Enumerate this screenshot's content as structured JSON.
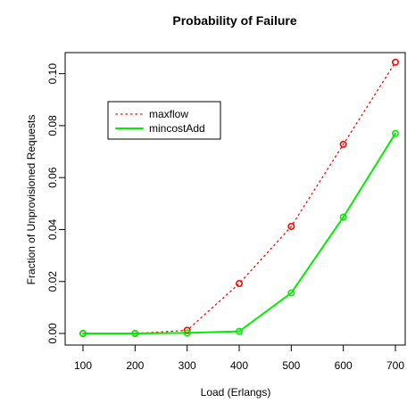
{
  "chart_data": {
    "type": "line",
    "title": "Probability of Failure",
    "xlabel": "Load (Erlangs)",
    "ylabel": "Fraction of Unprovisioned Requests",
    "x": [
      100,
      200,
      300,
      400,
      500,
      600,
      700
    ],
    "xlim": [
      100,
      700
    ],
    "ylim": [
      0,
      0.104
    ],
    "xticks": [
      "100",
      "200",
      "300",
      "400",
      "500",
      "600",
      "700"
    ],
    "yticks": [
      "0.00",
      "0.02",
      "0.04",
      "0.06",
      "0.08",
      "0.10"
    ],
    "grid": false,
    "legend_position": "top-left",
    "series": [
      {
        "name": "maxflow",
        "values": [
          0.0,
          0.0,
          0.0012,
          0.0192,
          0.0412,
          0.0728,
          0.1044
        ],
        "color": "#ff0000",
        "line_style": "dotted",
        "marker": "circle"
      },
      {
        "name": "mincostAdd",
        "values": [
          0.0,
          0.0,
          0.0002,
          0.0008,
          0.0156,
          0.0448,
          0.077
        ],
        "color": "#00ee00",
        "line_style": "solid",
        "marker": "circle"
      }
    ]
  }
}
